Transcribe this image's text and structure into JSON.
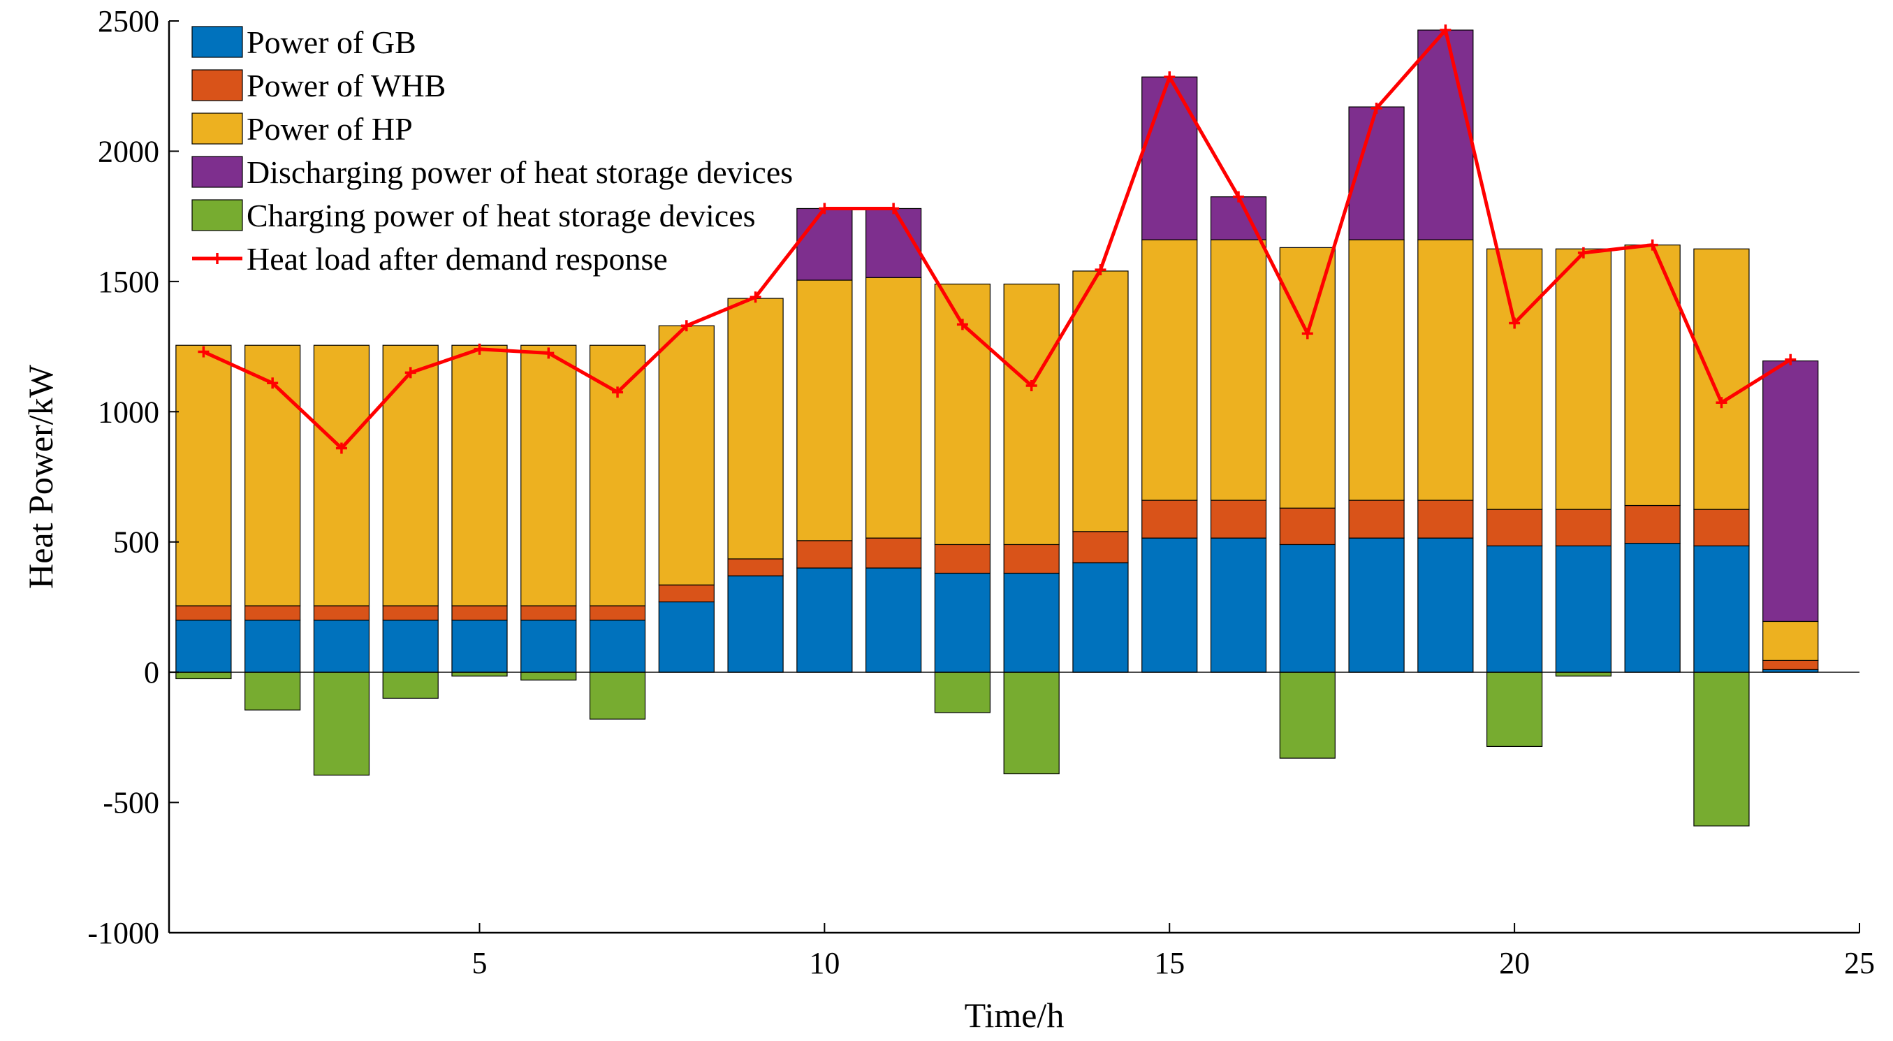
{
  "chart_data": {
    "type": "bar",
    "stacked": true,
    "xlabel": "Time/h",
    "ylabel": "Heat Power/kW",
    "xlim": [
      0.5,
      25
    ],
    "ylim": [
      -1000,
      2500
    ],
    "xticks": [
      5,
      10,
      15,
      20,
      25
    ],
    "yticks": [
      -1000,
      -500,
      0,
      500,
      1000,
      1500,
      2000,
      2500
    ],
    "legend_position": "top-left",
    "categories": [
      1,
      2,
      3,
      4,
      5,
      6,
      7,
      8,
      9,
      10,
      11,
      12,
      13,
      14,
      15,
      16,
      17,
      18,
      19,
      20,
      21,
      22,
      23,
      24
    ],
    "series": [
      {
        "name": "Power of GB",
        "color": "#0072BD",
        "values": [
          200,
          200,
          200,
          200,
          200,
          200,
          200,
          270,
          370,
          400,
          400,
          380,
          380,
          420,
          515,
          515,
          490,
          515,
          515,
          485,
          485,
          495,
          485,
          10
        ]
      },
      {
        "name": "Power of WHB",
        "color": "#D95319",
        "values": [
          55,
          55,
          55,
          55,
          55,
          55,
          55,
          65,
          65,
          105,
          115,
          110,
          110,
          120,
          145,
          145,
          140,
          145,
          145,
          140,
          140,
          145,
          140,
          35
        ]
      },
      {
        "name": "Power of HP",
        "color": "#EDB120",
        "values": [
          1000,
          1000,
          1000,
          1000,
          1000,
          1000,
          1000,
          995,
          1000,
          1000,
          1000,
          1000,
          1000,
          1000,
          1000,
          1000,
          1000,
          1000,
          1000,
          1000,
          1000,
          1000,
          1000,
          150
        ]
      },
      {
        "name": "Discharging power of heat storage devices",
        "color": "#7E2F8E",
        "values": [
          0,
          0,
          0,
          0,
          0,
          0,
          0,
          0,
          0,
          275,
          265,
          0,
          0,
          0,
          625,
          165,
          0,
          510,
          805,
          0,
          0,
          0,
          0,
          1000
        ]
      },
      {
        "name": "Charging power of heat storage devices",
        "color": "#77AC30",
        "values": [
          -25,
          -145,
          -395,
          -100,
          -15,
          -30,
          -180,
          0,
          0,
          0,
          0,
          -155,
          -390,
          0,
          0,
          0,
          -330,
          0,
          0,
          -285,
          -15,
          0,
          -590,
          0
        ]
      }
    ],
    "line_series": {
      "name": "Heat load after demand response",
      "color": "#FF0000",
      "values": [
        1230,
        1110,
        860,
        1150,
        1240,
        1225,
        1075,
        1330,
        1440,
        1780,
        1780,
        1335,
        1100,
        1545,
        2285,
        1825,
        1300,
        2165,
        2465,
        1340,
        1610,
        1640,
        1035,
        1200
      ]
    }
  }
}
